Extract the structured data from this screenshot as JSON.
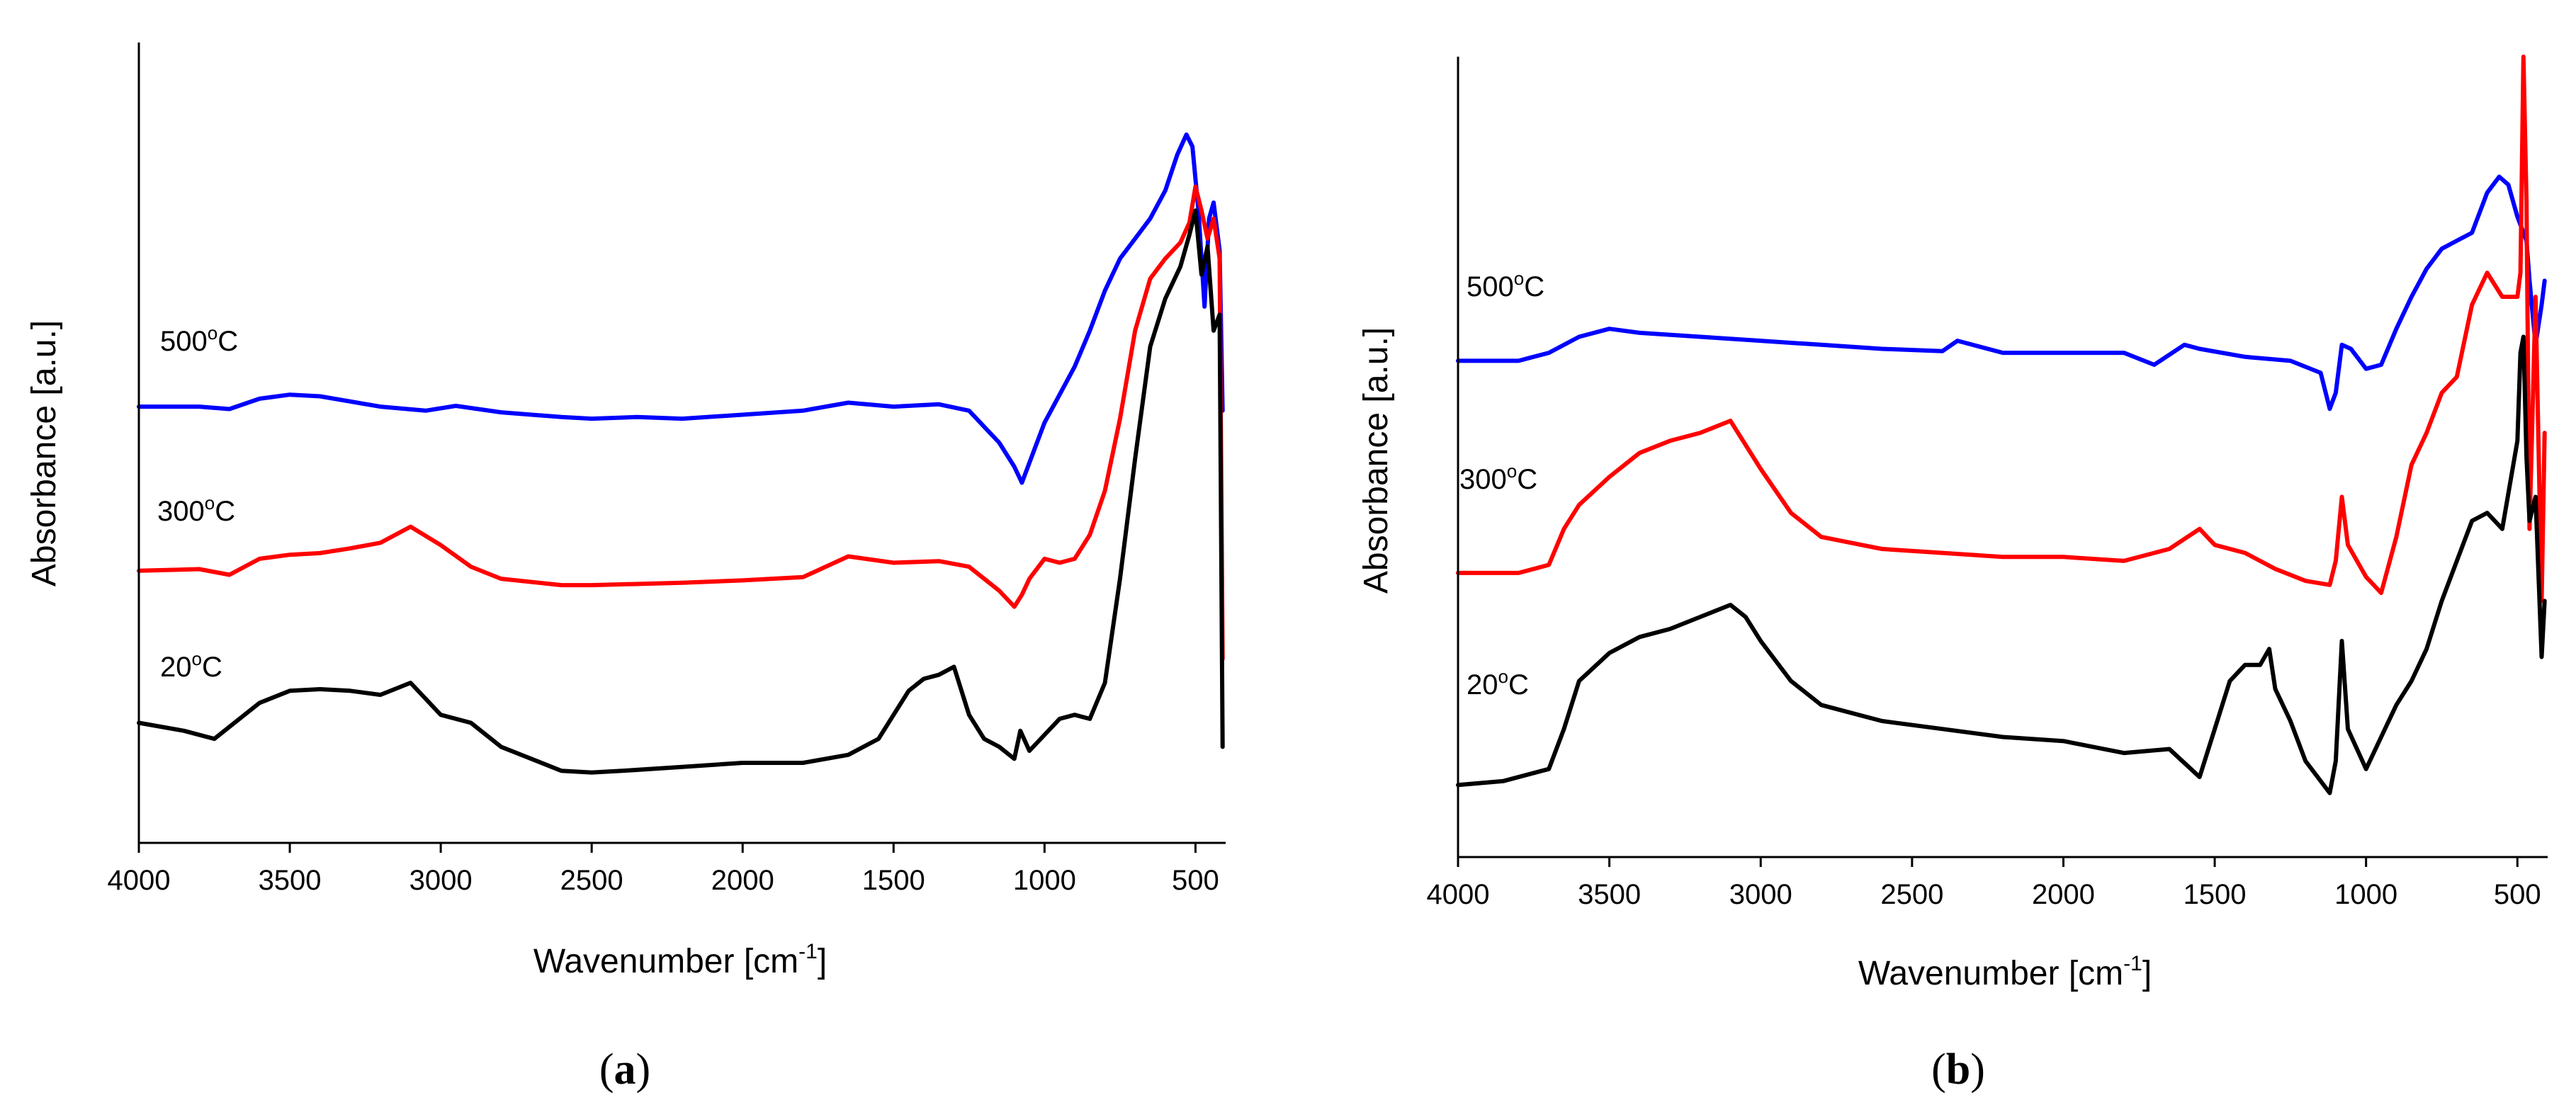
{
  "figure": {
    "panels": [
      {
        "id": "a",
        "label_open": "(",
        "label_letter": "a",
        "label_close": ")"
      },
      {
        "id": "b",
        "label_open": "(",
        "label_letter": "b",
        "label_close": ")"
      }
    ]
  },
  "chart_data": [
    {
      "panel": "a",
      "type": "line",
      "title": "",
      "xlabel": "Wavenumber [cm",
      "xlabel_sup": "-1",
      "xlabel_tail": "]",
      "ylabel": "Absorbance [a.u.]",
      "xlim": [
        4000,
        400
      ],
      "ylim": [
        0,
        10
      ],
      "x_reversed": true,
      "x_ticks": [
        4000,
        3500,
        3000,
        2500,
        2000,
        1500,
        1000,
        500
      ],
      "x_tick_labels": [
        "4000",
        "3500",
        "3000",
        "2500",
        "2000",
        "1500",
        "1000",
        "500"
      ],
      "y_ticks_shown": false,
      "series": [
        {
          "name": "500°C",
          "label_num": "500",
          "label_sup": "o",
          "label_unit": "C",
          "color": "#0000ff",
          "x": [
            4000,
            3800,
            3700,
            3600,
            3500,
            3400,
            3200,
            3050,
            2950,
            2800,
            2600,
            2500,
            2350,
            2200,
            2000,
            1800,
            1650,
            1500,
            1350,
            1250,
            1200,
            1150,
            1100,
            1075,
            1050,
            1000,
            950,
            900,
            850,
            800,
            750,
            700,
            650,
            600,
            560,
            530,
            510,
            490,
            470,
            455,
            440,
            420,
            410
          ],
          "y": [
            5.45,
            5.45,
            5.42,
            5.55,
            5.6,
            5.58,
            5.45,
            5.4,
            5.46,
            5.38,
            5.32,
            5.3,
            5.32,
            5.3,
            5.35,
            5.4,
            5.5,
            5.45,
            5.48,
            5.4,
            5.2,
            5.0,
            4.7,
            4.5,
            4.75,
            5.25,
            5.6,
            5.95,
            6.4,
            6.9,
            7.3,
            7.55,
            7.8,
            8.15,
            8.6,
            8.85,
            8.7,
            7.9,
            6.7,
            7.8,
            8.0,
            7.4,
            5.4
          ]
        },
        {
          "name": "300°C",
          "label_num": "300",
          "label_sup": "o",
          "label_unit": "C",
          "color": "#ff0000",
          "x": [
            4000,
            3800,
            3700,
            3600,
            3500,
            3400,
            3300,
            3200,
            3100,
            3000,
            2900,
            2800,
            2600,
            2500,
            2300,
            2200,
            2000,
            1800,
            1650,
            1500,
            1350,
            1250,
            1150,
            1100,
            1075,
            1050,
            1000,
            950,
            900,
            850,
            800,
            750,
            700,
            650,
            600,
            550,
            520,
            500,
            480,
            460,
            440,
            420,
            410
          ],
          "y": [
            3.4,
            3.42,
            3.35,
            3.55,
            3.6,
            3.62,
            3.68,
            3.75,
            3.95,
            3.72,
            3.45,
            3.3,
            3.22,
            3.22,
            3.24,
            3.25,
            3.28,
            3.32,
            3.58,
            3.5,
            3.52,
            3.45,
            3.15,
            2.95,
            3.1,
            3.3,
            3.55,
            3.5,
            3.55,
            3.85,
            4.4,
            5.3,
            6.4,
            7.05,
            7.3,
            7.5,
            7.75,
            8.2,
            7.9,
            7.55,
            7.8,
            7.3,
            2.3
          ]
        },
        {
          "name": "20°C",
          "label_num": "20",
          "label_sup": "o",
          "label_unit": "C",
          "color": "#000000",
          "x": [
            4000,
            3850,
            3750,
            3600,
            3500,
            3400,
            3300,
            3200,
            3100,
            3000,
            2900,
            2800,
            2700,
            2600,
            2500,
            2400,
            2200,
            2000,
            1800,
            1650,
            1550,
            1450,
            1400,
            1350,
            1300,
            1250,
            1200,
            1150,
            1100,
            1080,
            1050,
            1000,
            950,
            900,
            850,
            800,
            750,
            700,
            650,
            600,
            550,
            520,
            500,
            480,
            460,
            440,
            420,
            410
          ],
          "y": [
            1.5,
            1.4,
            1.3,
            1.75,
            1.9,
            1.92,
            1.9,
            1.85,
            2.0,
            1.6,
            1.5,
            1.2,
            1.05,
            0.9,
            0.88,
            0.9,
            0.95,
            1.0,
            1.0,
            1.1,
            1.3,
            1.9,
            2.05,
            2.1,
            2.2,
            1.6,
            1.3,
            1.2,
            1.05,
            1.4,
            1.15,
            1.35,
            1.55,
            1.6,
            1.55,
            2.0,
            3.3,
            4.8,
            6.2,
            6.8,
            7.2,
            7.6,
            7.9,
            7.1,
            7.45,
            6.4,
            6.6,
            1.2
          ]
        }
      ]
    },
    {
      "panel": "b",
      "type": "line",
      "title": "",
      "xlabel": "Wavenumber [cm",
      "xlabel_sup": "-1",
      "xlabel_tail": "]",
      "ylabel": "Absorbance [a.u.]",
      "xlim": [
        4000,
        400
      ],
      "ylim": [
        0,
        10
      ],
      "x_reversed": true,
      "x_ticks": [
        4000,
        3500,
        3000,
        2500,
        2000,
        1500,
        1000,
        500
      ],
      "x_tick_labels": [
        "4000",
        "3500",
        "3000",
        "2500",
        "2000",
        "1500",
        "1000",
        "500"
      ],
      "y_ticks_shown": false,
      "series": [
        {
          "name": "500°C",
          "label_num": "500",
          "label_sup": "o",
          "label_unit": "C",
          "color": "#0000ff",
          "x": [
            4000,
            3800,
            3700,
            3600,
            3500,
            3400,
            3200,
            3000,
            2800,
            2600,
            2400,
            2350,
            2200,
            2000,
            1800,
            1700,
            1600,
            1550,
            1400,
            1250,
            1150,
            1120,
            1100,
            1080,
            1050,
            1000,
            950,
            900,
            850,
            800,
            750,
            700,
            650,
            600,
            560,
            530,
            500,
            480,
            470,
            460,
            440,
            420,
            410
          ],
          "y": [
            6.2,
            6.2,
            6.3,
            6.5,
            6.6,
            6.55,
            6.5,
            6.45,
            6.4,
            6.35,
            6.32,
            6.45,
            6.3,
            6.3,
            6.3,
            6.15,
            6.4,
            6.35,
            6.25,
            6.2,
            6.05,
            5.6,
            5.8,
            6.4,
            6.35,
            6.1,
            6.15,
            6.6,
            7.0,
            7.35,
            7.6,
            7.7,
            7.8,
            8.3,
            8.5,
            8.4,
            8.0,
            7.8,
            7.7,
            7.2,
            6.4,
            6.9,
            7.2
          ]
        },
        {
          "name": "300°C",
          "label_num": "300",
          "label_sup": "o",
          "label_unit": "C",
          "color": "#ff0000",
          "x": [
            4000,
            3800,
            3700,
            3650,
            3600,
            3500,
            3400,
            3300,
            3200,
            3100,
            3000,
            2900,
            2800,
            2600,
            2400,
            2200,
            2000,
            1800,
            1650,
            1550,
            1500,
            1400,
            1300,
            1200,
            1120,
            1100,
            1080,
            1060,
            1000,
            950,
            900,
            850,
            800,
            750,
            700,
            650,
            600,
            550,
            500,
            490,
            480,
            470,
            460,
            440,
            420,
            410
          ],
          "y": [
            3.55,
            3.55,
            3.65,
            4.1,
            4.4,
            4.75,
            5.05,
            5.2,
            5.3,
            5.45,
            4.85,
            4.3,
            4.0,
            3.85,
            3.8,
            3.75,
            3.75,
            3.7,
            3.85,
            4.1,
            3.9,
            3.8,
            3.6,
            3.45,
            3.4,
            3.7,
            4.5,
            3.9,
            3.5,
            3.3,
            4.0,
            4.9,
            5.3,
            5.8,
            6.0,
            6.9,
            7.3,
            7.0,
            7.0,
            7.3,
            10.0,
            8.2,
            4.1,
            7.0,
            3.2,
            5.3
          ]
        },
        {
          "name": "20°C",
          "label_num": "20",
          "label_sup": "o",
          "label_unit": "C",
          "color": "#000000",
          "x": [
            4000,
            3850,
            3700,
            3650,
            3600,
            3500,
            3400,
            3300,
            3200,
            3100,
            3050,
            3000,
            2900,
            2800,
            2600,
            2400,
            2200,
            2000,
            1800,
            1650,
            1550,
            1500,
            1450,
            1400,
            1350,
            1320,
            1300,
            1250,
            1200,
            1120,
            1100,
            1080,
            1060,
            1000,
            950,
            900,
            850,
            800,
            750,
            700,
            650,
            600,
            550,
            500,
            490,
            480,
            470,
            460,
            440,
            420,
            410
          ],
          "y": [
            0.9,
            0.95,
            1.1,
            1.6,
            2.2,
            2.55,
            2.75,
            2.85,
            3.0,
            3.15,
            3.0,
            2.7,
            2.2,
            1.9,
            1.7,
            1.6,
            1.5,
            1.45,
            1.3,
            1.35,
            1.0,
            1.6,
            2.2,
            2.4,
            2.4,
            2.6,
            2.1,
            1.7,
            1.2,
            0.8,
            1.2,
            2.7,
            1.6,
            1.1,
            1.5,
            1.9,
            2.2,
            2.6,
            3.2,
            3.7,
            4.2,
            4.3,
            4.1,
            5.2,
            6.3,
            6.5,
            5.0,
            4.2,
            4.5,
            2.5,
            3.2
          ]
        }
      ]
    }
  ]
}
